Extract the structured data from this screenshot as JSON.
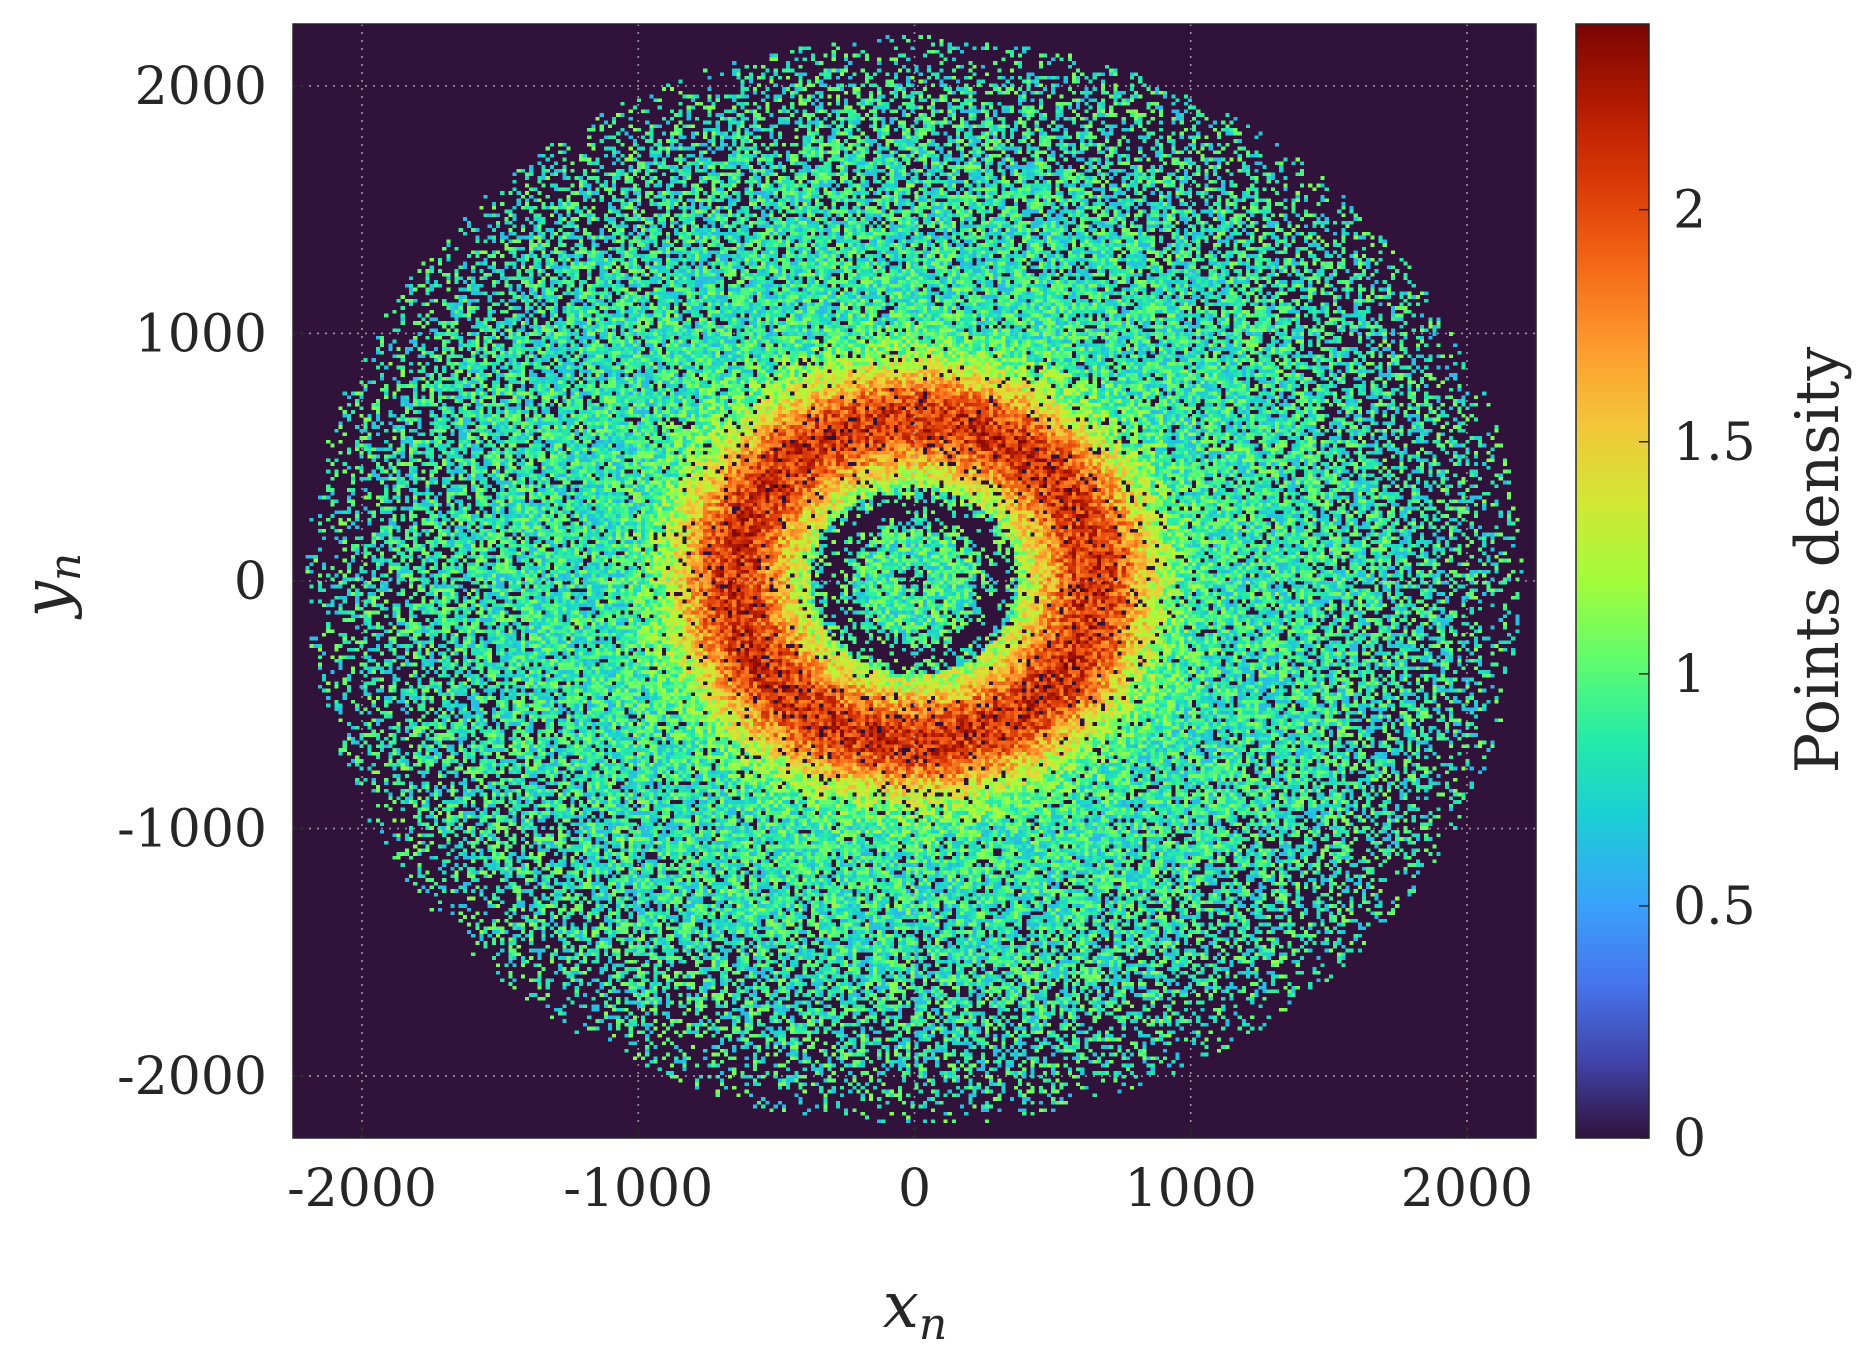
{
  "chart_data": {
    "type": "heatmap",
    "title": "",
    "xlabel": "x",
    "xlabel_sub": "n",
    "ylabel": "y",
    "ylabel_sub": "n",
    "xlim": [
      -2250,
      2250
    ],
    "ylim": [
      -2250,
      2250
    ],
    "x_ticks": [
      -2000,
      -1000,
      0,
      1000,
      2000
    ],
    "x_tick_labels": [
      "-2000",
      "-1000",
      "0",
      "1000",
      "2000"
    ],
    "y_ticks": [
      -2000,
      -1000,
      0,
      1000,
      2000
    ],
    "y_tick_labels": [
      "-2000",
      "-1000",
      "0",
      "1000",
      "2000"
    ],
    "grid": true,
    "grid_style": "dotted",
    "background_color": "#30123b",
    "colorbar": {
      "label": "Points density",
      "colormap": "turbo",
      "range": [
        0,
        2.4
      ],
      "ticks": [
        0,
        0.5,
        1,
        1.5,
        2
      ],
      "tick_labels": [
        "0",
        "0.5",
        "1",
        "1.5",
        "2"
      ]
    },
    "distribution": {
      "shape": "roughly circular annular scatter centered at origin",
      "outer_radius": 2200,
      "dense_ring_radius": 650,
      "dense_ring_peak_density": 2.2,
      "inner_gap_radius": 380,
      "inner_ring_radius": 170,
      "center_cluster_radius": 60
    }
  }
}
